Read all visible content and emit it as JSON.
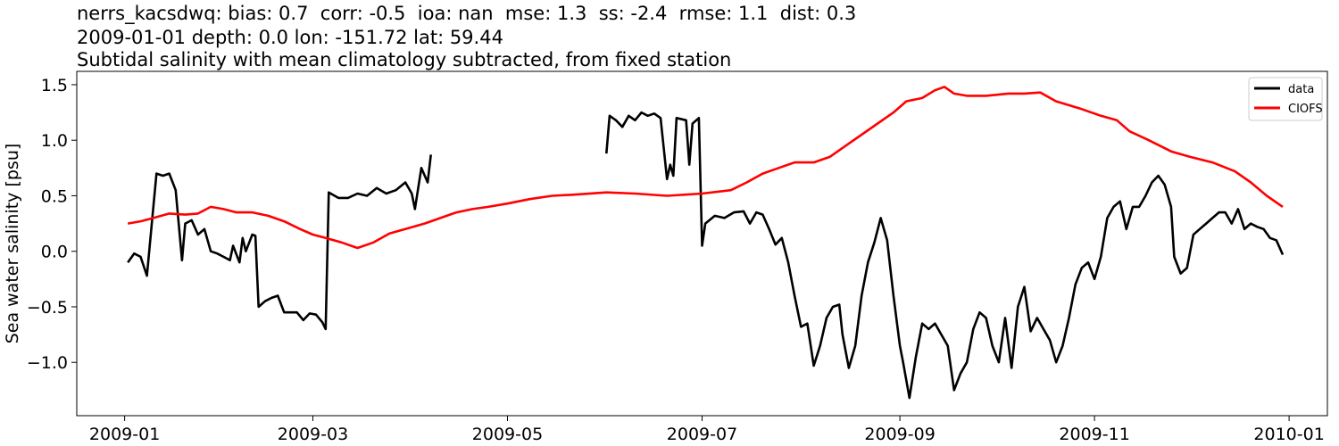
{
  "chart_data": {
    "type": "line",
    "title_lines": [
      "nerrs_kacsdwq: bias: 0.7  corr: -0.5  ioa: nan  mse: 1.3  ss: -2.4  rmse: 1.1  dist: 0.3",
      "2009-01-01 depth: 0.0 lon: -151.72 lat: 59.44",
      "Subtidal salinity with mean climatology subtracted, from fixed station"
    ],
    "xlabel": "",
    "ylabel": "Sea water salinity [psu]",
    "x_type": "date",
    "xlim": [
      "2008-12-17",
      "2010-01-13"
    ],
    "ylim": [
      -1.48,
      1.62
    ],
    "x_ticks": [
      "2009-01-01",
      "2009-03-01",
      "2009-05-01",
      "2009-07-01",
      "2009-09-01",
      "2009-11-01",
      "2010-01-01"
    ],
    "x_tick_labels": [
      "2009-01",
      "2009-03",
      "2009-05",
      "2009-07",
      "2009-09",
      "2009-11",
      "2010-01"
    ],
    "y_ticks": [
      -1.0,
      -0.5,
      0.0,
      0.5,
      1.0,
      1.5
    ],
    "y_tick_labels": [
      "−1.0",
      "−0.5",
      "0.0",
      "0.5",
      "1.0",
      "1.5"
    ],
    "grid": false,
    "legend_position": "top-right",
    "series": [
      {
        "name": "data",
        "color": "#000000",
        "segments": [
          [
            [
              "2009-01-02",
              -0.1
            ],
            [
              "2009-01-04",
              -0.02
            ],
            [
              "2009-01-06",
              -0.05
            ],
            [
              "2009-01-08",
              -0.22
            ],
            [
              "2009-01-10",
              0.4
            ],
            [
              "2009-01-11",
              0.7
            ],
            [
              "2009-01-13",
              0.68
            ],
            [
              "2009-01-15",
              0.7
            ],
            [
              "2009-01-17",
              0.55
            ],
            [
              "2009-01-19",
              -0.08
            ],
            [
              "2009-01-20",
              0.25
            ],
            [
              "2009-01-22",
              0.28
            ],
            [
              "2009-01-24",
              0.15
            ],
            [
              "2009-01-26",
              0.2
            ],
            [
              "2009-01-28",
              0.0
            ],
            [
              "2009-01-30",
              -0.02
            ],
            [
              "2009-02-01",
              -0.05
            ],
            [
              "2009-02-03",
              -0.08
            ],
            [
              "2009-02-04",
              0.05
            ],
            [
              "2009-02-06",
              -0.1
            ],
            [
              "2009-02-07",
              0.12
            ],
            [
              "2009-02-08",
              0.0
            ],
            [
              "2009-02-10",
              0.15
            ],
            [
              "2009-02-11",
              0.14
            ],
            [
              "2009-02-12",
              -0.5
            ],
            [
              "2009-02-14",
              -0.45
            ],
            [
              "2009-02-16",
              -0.42
            ],
            [
              "2009-02-18",
              -0.4
            ],
            [
              "2009-02-20",
              -0.55
            ],
            [
              "2009-02-22",
              -0.55
            ],
            [
              "2009-02-24",
              -0.55
            ],
            [
              "2009-02-26",
              -0.62
            ],
            [
              "2009-02-28",
              -0.56
            ],
            [
              "2009-03-02",
              -0.57
            ],
            [
              "2009-03-04",
              -0.64
            ],
            [
              "2009-03-05",
              -0.7
            ],
            [
              "2009-03-06",
              0.53
            ],
            [
              "2009-03-09",
              0.48
            ],
            [
              "2009-03-12",
              0.48
            ],
            [
              "2009-03-15",
              0.52
            ],
            [
              "2009-03-18",
              0.5
            ],
            [
              "2009-03-21",
              0.57
            ],
            [
              "2009-03-24",
              0.52
            ],
            [
              "2009-03-27",
              0.55
            ],
            [
              "2009-03-30",
              0.62
            ],
            [
              "2009-04-01",
              0.52
            ],
            [
              "2009-04-02",
              0.38
            ],
            [
              "2009-04-04",
              0.75
            ],
            [
              "2009-04-06",
              0.62
            ],
            [
              "2009-04-07",
              0.87
            ]
          ],
          [
            [
              "2009-06-01",
              0.88
            ],
            [
              "2009-06-02",
              1.22
            ],
            [
              "2009-06-04",
              1.18
            ],
            [
              "2009-06-06",
              1.12
            ],
            [
              "2009-06-08",
              1.22
            ],
            [
              "2009-06-10",
              1.18
            ],
            [
              "2009-06-12",
              1.25
            ],
            [
              "2009-06-14",
              1.22
            ],
            [
              "2009-06-16",
              1.24
            ],
            [
              "2009-06-18",
              1.2
            ],
            [
              "2009-06-20",
              0.65
            ],
            [
              "2009-06-21",
              0.78
            ],
            [
              "2009-06-22",
              0.68
            ],
            [
              "2009-06-23",
              1.2
            ],
            [
              "2009-06-26",
              1.18
            ],
            [
              "2009-06-27",
              0.78
            ],
            [
              "2009-06-28",
              1.15
            ],
            [
              "2009-06-30",
              1.2
            ],
            [
              "2009-07-01",
              0.05
            ],
            [
              "2009-07-02",
              0.25
            ],
            [
              "2009-07-05",
              0.32
            ],
            [
              "2009-07-08",
              0.3
            ],
            [
              "2009-07-11",
              0.35
            ],
            [
              "2009-07-14",
              0.36
            ],
            [
              "2009-07-16",
              0.25
            ],
            [
              "2009-07-18",
              0.35
            ],
            [
              "2009-07-20",
              0.33
            ],
            [
              "2009-07-22",
              0.2
            ],
            [
              "2009-07-24",
              0.06
            ],
            [
              "2009-07-26",
              0.12
            ],
            [
              "2009-07-28",
              -0.1
            ],
            [
              "2009-07-30",
              -0.4
            ],
            [
              "2009-08-01",
              -0.68
            ],
            [
              "2009-08-03",
              -0.65
            ],
            [
              "2009-08-05",
              -1.03
            ],
            [
              "2009-08-07",
              -0.85
            ],
            [
              "2009-08-09",
              -0.6
            ],
            [
              "2009-08-11",
              -0.5
            ],
            [
              "2009-08-13",
              -0.48
            ],
            [
              "2009-08-14",
              -0.75
            ],
            [
              "2009-08-16",
              -1.05
            ],
            [
              "2009-08-18",
              -0.85
            ],
            [
              "2009-08-20",
              -0.4
            ],
            [
              "2009-08-22",
              -0.1
            ],
            [
              "2009-08-24",
              0.08
            ],
            [
              "2009-08-26",
              0.3
            ],
            [
              "2009-08-28",
              0.1
            ],
            [
              "2009-08-30",
              -0.4
            ],
            [
              "2009-09-01",
              -0.85
            ],
            [
              "2009-09-02",
              -1.0
            ],
            [
              "2009-09-04",
              -1.32
            ],
            [
              "2009-09-06",
              -0.95
            ],
            [
              "2009-09-08",
              -0.65
            ],
            [
              "2009-09-10",
              -0.7
            ],
            [
              "2009-09-12",
              -0.65
            ],
            [
              "2009-09-14",
              -0.75
            ],
            [
              "2009-09-16",
              -0.85
            ],
            [
              "2009-09-18",
              -1.25
            ],
            [
              "2009-09-20",
              -1.1
            ],
            [
              "2009-09-22",
              -1.0
            ],
            [
              "2009-09-24",
              -0.7
            ],
            [
              "2009-09-26",
              -0.55
            ],
            [
              "2009-09-28",
              -0.6
            ],
            [
              "2009-09-30",
              -0.85
            ],
            [
              "2009-10-02",
              -1.0
            ],
            [
              "2009-10-04",
              -0.6
            ],
            [
              "2009-10-06",
              -1.05
            ],
            [
              "2009-10-08",
              -0.5
            ],
            [
              "2009-10-10",
              -0.32
            ],
            [
              "2009-10-12",
              -0.72
            ],
            [
              "2009-10-14",
              -0.6
            ],
            [
              "2009-10-16",
              -0.7
            ],
            [
              "2009-10-18",
              -0.8
            ],
            [
              "2009-10-20",
              -1.0
            ],
            [
              "2009-10-22",
              -0.85
            ],
            [
              "2009-10-24",
              -0.6
            ],
            [
              "2009-10-26",
              -0.3
            ],
            [
              "2009-10-28",
              -0.15
            ],
            [
              "2009-10-30",
              -0.1
            ],
            [
              "2009-11-01",
              -0.25
            ],
            [
              "2009-11-03",
              -0.05
            ],
            [
              "2009-11-05",
              0.3
            ],
            [
              "2009-11-07",
              0.4
            ],
            [
              "2009-11-09",
              0.45
            ],
            [
              "2009-11-11",
              0.2
            ],
            [
              "2009-11-13",
              0.4
            ],
            [
              "2009-11-15",
              0.4
            ],
            [
              "2009-11-17",
              0.5
            ],
            [
              "2009-11-19",
              0.62
            ],
            [
              "2009-11-21",
              0.68
            ],
            [
              "2009-11-23",
              0.6
            ],
            [
              "2009-11-25",
              0.4
            ],
            [
              "2009-11-26",
              -0.05
            ],
            [
              "2009-11-28",
              -0.2
            ],
            [
              "2009-11-30",
              -0.15
            ],
            [
              "2009-12-02",
              0.15
            ],
            [
              "2009-12-04",
              0.2
            ],
            [
              "2009-12-06",
              0.25
            ],
            [
              "2009-12-08",
              0.3
            ],
            [
              "2009-12-10",
              0.35
            ],
            [
              "2009-12-12",
              0.35
            ],
            [
              "2009-12-14",
              0.25
            ],
            [
              "2009-12-16",
              0.38
            ],
            [
              "2009-12-18",
              0.2
            ],
            [
              "2009-12-20",
              0.25
            ],
            [
              "2009-12-22",
              0.22
            ],
            [
              "2009-12-24",
              0.2
            ],
            [
              "2009-12-26",
              0.12
            ],
            [
              "2009-12-28",
              0.1
            ],
            [
              "2009-12-30",
              -0.03
            ]
          ]
        ]
      },
      {
        "name": "CIOFS",
        "color": "#ff0000",
        "segments": [
          [
            [
              "2009-01-02",
              0.25
            ],
            [
              "2009-01-06",
              0.27
            ],
            [
              "2009-01-10",
              0.3
            ],
            [
              "2009-01-15",
              0.34
            ],
            [
              "2009-01-20",
              0.33
            ],
            [
              "2009-01-24",
              0.34
            ],
            [
              "2009-01-28",
              0.4
            ],
            [
              "2009-02-01",
              0.38
            ],
            [
              "2009-02-05",
              0.35
            ],
            [
              "2009-02-10",
              0.35
            ],
            [
              "2009-02-15",
              0.32
            ],
            [
              "2009-02-20",
              0.27
            ],
            [
              "2009-02-25",
              0.2
            ],
            [
              "2009-03-01",
              0.15
            ],
            [
              "2009-03-05",
              0.12
            ],
            [
              "2009-03-10",
              0.08
            ],
            [
              "2009-03-15",
              0.03
            ],
            [
              "2009-03-20",
              0.08
            ],
            [
              "2009-03-25",
              0.16
            ],
            [
              "2009-03-30",
              0.2
            ],
            [
              "2009-04-05",
              0.25
            ],
            [
              "2009-04-10",
              0.3
            ],
            [
              "2009-04-15",
              0.35
            ],
            [
              "2009-04-20",
              0.38
            ],
            [
              "2009-04-25",
              0.4
            ],
            [
              "2009-05-01",
              0.43
            ],
            [
              "2009-05-08",
              0.47
            ],
            [
              "2009-05-15",
              0.5
            ],
            [
              "2009-05-22",
              0.51
            ],
            [
              "2009-06-01",
              0.53
            ],
            [
              "2009-06-10",
              0.52
            ],
            [
              "2009-06-20",
              0.5
            ],
            [
              "2009-07-01",
              0.52
            ],
            [
              "2009-07-10",
              0.55
            ],
            [
              "2009-07-15",
              0.62
            ],
            [
              "2009-07-20",
              0.7
            ],
            [
              "2009-07-25",
              0.75
            ],
            [
              "2009-07-30",
              0.8
            ],
            [
              "2009-08-05",
              0.8
            ],
            [
              "2009-08-10",
              0.85
            ],
            [
              "2009-08-15",
              0.95
            ],
            [
              "2009-08-20",
              1.05
            ],
            [
              "2009-08-25",
              1.15
            ],
            [
              "2009-08-30",
              1.25
            ],
            [
              "2009-09-03",
              1.35
            ],
            [
              "2009-09-08",
              1.38
            ],
            [
              "2009-09-12",
              1.45
            ],
            [
              "2009-09-15",
              1.48
            ],
            [
              "2009-09-18",
              1.42
            ],
            [
              "2009-09-22",
              1.4
            ],
            [
              "2009-09-28",
              1.4
            ],
            [
              "2009-10-05",
              1.42
            ],
            [
              "2009-10-10",
              1.42
            ],
            [
              "2009-10-15",
              1.43
            ],
            [
              "2009-10-20",
              1.35
            ],
            [
              "2009-10-28",
              1.28
            ],
            [
              "2009-11-03",
              1.22
            ],
            [
              "2009-11-08",
              1.18
            ],
            [
              "2009-11-12",
              1.08
            ],
            [
              "2009-11-18",
              1.0
            ],
            [
              "2009-11-25",
              0.9
            ],
            [
              "2009-12-01",
              0.85
            ],
            [
              "2009-12-08",
              0.8
            ],
            [
              "2009-12-15",
              0.72
            ],
            [
              "2009-12-20",
              0.62
            ],
            [
              "2009-12-25",
              0.5
            ],
            [
              "2009-12-30",
              0.4
            ]
          ]
        ]
      }
    ]
  }
}
